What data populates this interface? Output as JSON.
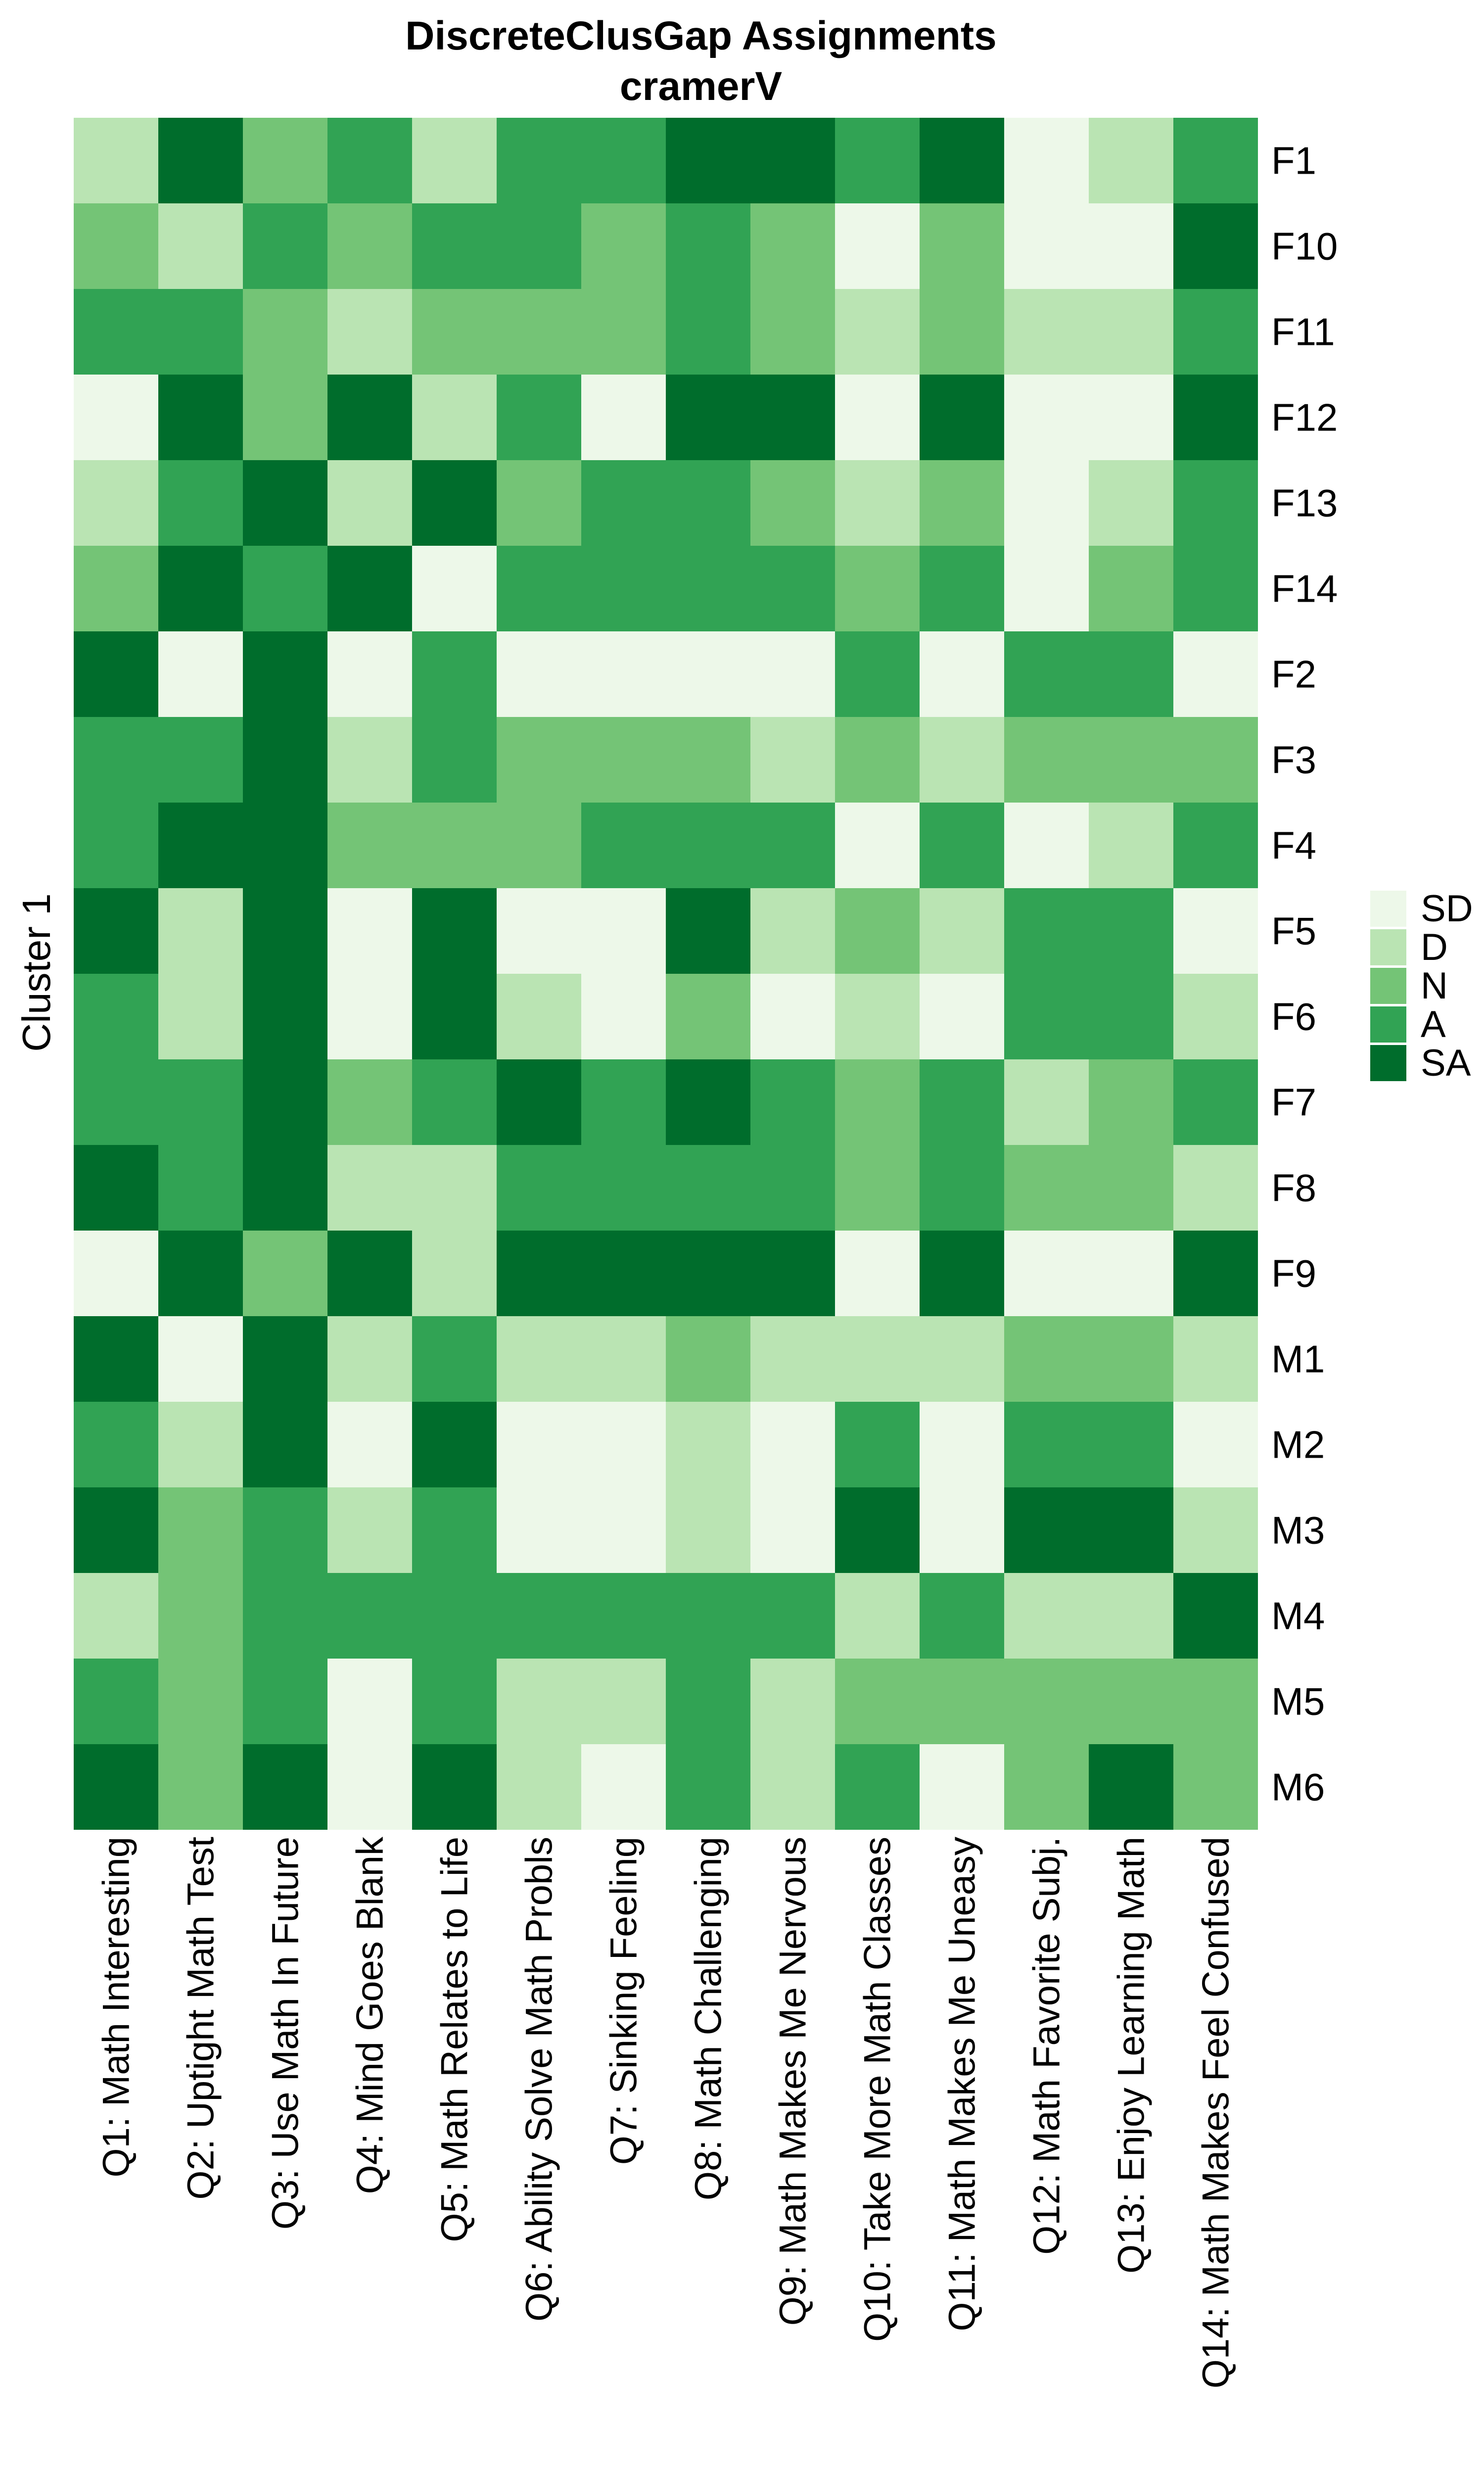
{
  "title": {
    "line1": "DiscreteClusGap Assignments",
    "line2": "cramerV"
  },
  "y_axis_label": "Cluster 1",
  "legend": {
    "position": "right",
    "items": [
      {
        "label": "SD",
        "color": "#EDF8E9"
      },
      {
        "label": "D",
        "color": "#BAE4B3"
      },
      {
        "label": "N",
        "color": "#74C476"
      },
      {
        "label": "A",
        "color": "#31A354"
      },
      {
        "label": "SA",
        "color": "#006D2C"
      }
    ]
  },
  "chart_data": {
    "type": "heatmap",
    "title": "DiscreteClusGap Assignments cramerV",
    "grid": false,
    "legend_position": "right",
    "levels": [
      "SD",
      "D",
      "N",
      "A",
      "SA"
    ],
    "level_colors": {
      "SD": "#EDF8E9",
      "D": "#BAE4B3",
      "N": "#74C476",
      "A": "#31A354",
      "SA": "#006D2C"
    },
    "rows": [
      "F1",
      "F10",
      "F11",
      "F12",
      "F13",
      "F14",
      "F2",
      "F3",
      "F4",
      "F5",
      "F6",
      "F7",
      "F8",
      "F9",
      "M1",
      "M2",
      "M3",
      "M4",
      "M5",
      "M6"
    ],
    "columns": [
      "Q1: Math Interesting",
      "Q2: Uptight Math Test",
      "Q3: Use Math In Future",
      "Q4: Mind Goes Blank",
      "Q5: Math Relates to Life",
      "Q6: Ability Solve Math Probls",
      "Q7: Sinking Feeling",
      "Q8: Math Challenging",
      "Q9: Math Makes Me Nervous",
      "Q10: Take More Math Classes",
      "Q11: Math Makes Me Uneasy",
      "Q12: Math Favorite Subj.",
      "Q13: Enjoy Learning Math",
      "Q14: Math Makes Feel Confused"
    ],
    "values": [
      [
        "D",
        "SA",
        "N",
        "A",
        "D",
        "A",
        "A",
        "SA",
        "SA",
        "A",
        "SA",
        "SD",
        "D",
        "A"
      ],
      [
        "N",
        "D",
        "A",
        "N",
        "A",
        "A",
        "N",
        "A",
        "N",
        "SD",
        "N",
        "SD",
        "SD",
        "SA"
      ],
      [
        "A",
        "A",
        "N",
        "D",
        "N",
        "N",
        "N",
        "A",
        "N",
        "D",
        "N",
        "D",
        "D",
        "A"
      ],
      [
        "SD",
        "SA",
        "N",
        "SA",
        "D",
        "A",
        "SD",
        "SA",
        "SA",
        "SD",
        "SA",
        "SD",
        "SD",
        "SA"
      ],
      [
        "D",
        "A",
        "SA",
        "D",
        "SA",
        "N",
        "A",
        "A",
        "N",
        "D",
        "N",
        "SD",
        "D",
        "A"
      ],
      [
        "N",
        "SA",
        "A",
        "SA",
        "SD",
        "A",
        "A",
        "A",
        "A",
        "N",
        "A",
        "SD",
        "N",
        "A"
      ],
      [
        "SA",
        "SD",
        "SA",
        "SD",
        "A",
        "SD",
        "SD",
        "SD",
        "SD",
        "A",
        "SD",
        "A",
        "A",
        "SD"
      ],
      [
        "A",
        "A",
        "SA",
        "D",
        "A",
        "N",
        "N",
        "N",
        "D",
        "N",
        "D",
        "N",
        "N",
        "N"
      ],
      [
        "A",
        "SA",
        "SA",
        "N",
        "N",
        "N",
        "A",
        "A",
        "A",
        "SD",
        "A",
        "SD",
        "D",
        "A"
      ],
      [
        "SA",
        "D",
        "SA",
        "SD",
        "SA",
        "SD",
        "SD",
        "SA",
        "D",
        "N",
        "D",
        "A",
        "A",
        "SD"
      ],
      [
        "A",
        "D",
        "SA",
        "SD",
        "SA",
        "D",
        "SD",
        "N",
        "SD",
        "D",
        "SD",
        "A",
        "A",
        "D"
      ],
      [
        "A",
        "A",
        "SA",
        "N",
        "A",
        "SA",
        "A",
        "SA",
        "A",
        "N",
        "A",
        "D",
        "N",
        "A"
      ],
      [
        "SA",
        "A",
        "SA",
        "D",
        "D",
        "A",
        "A",
        "A",
        "A",
        "N",
        "A",
        "N",
        "N",
        "D"
      ],
      [
        "SD",
        "SA",
        "N",
        "SA",
        "D",
        "SA",
        "SA",
        "SA",
        "SA",
        "SD",
        "SA",
        "SD",
        "SD",
        "SA"
      ],
      [
        "SA",
        "SD",
        "SA",
        "D",
        "A",
        "D",
        "D",
        "N",
        "D",
        "D",
        "D",
        "N",
        "N",
        "D"
      ],
      [
        "A",
        "D",
        "SA",
        "SD",
        "SA",
        "SD",
        "SD",
        "D",
        "SD",
        "A",
        "SD",
        "A",
        "A",
        "SD"
      ],
      [
        "SA",
        "N",
        "A",
        "D",
        "A",
        "SD",
        "SD",
        "D",
        "SD",
        "SA",
        "SD",
        "SA",
        "SA",
        "D"
      ],
      [
        "D",
        "N",
        "A",
        "A",
        "A",
        "A",
        "A",
        "A",
        "A",
        "D",
        "A",
        "D",
        "D",
        "SA"
      ],
      [
        "A",
        "N",
        "A",
        "SD",
        "A",
        "D",
        "D",
        "A",
        "D",
        "N",
        "N",
        "N",
        "N",
        "N"
      ],
      [
        "SA",
        "N",
        "SA",
        "SD",
        "SA",
        "D",
        "SD",
        "A",
        "D",
        "A",
        "SD",
        "N",
        "SA",
        "N"
      ]
    ]
  }
}
